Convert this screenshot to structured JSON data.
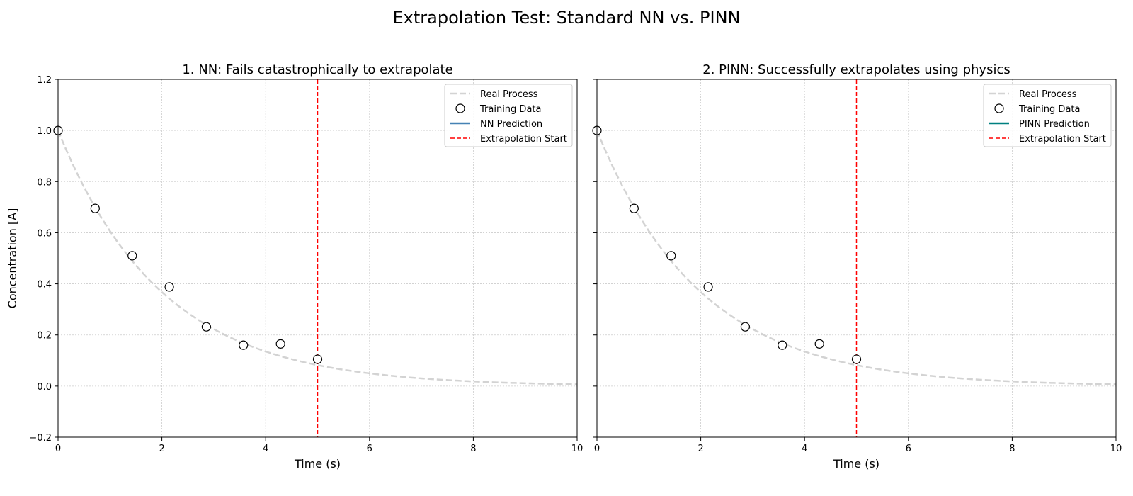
{
  "figure": {
    "suptitle": "Extrapolation Test: Standard NN vs. PINN"
  },
  "colors": {
    "real_process": "#d3d3d3",
    "training_edge": "#000000",
    "nn_prediction": "#4682b4",
    "pinn_prediction": "#008080",
    "extrapolation_line": "#ff0000",
    "grid": "#cccccc"
  },
  "chart_data": [
    {
      "type": "line",
      "title": "1. NN: Fails catastrophically to extrapolate",
      "xlabel": "Time (s)",
      "ylabel": "Concentration [A]",
      "xlim": [
        0,
        10
      ],
      "ylim": [
        -0.2,
        1.2
      ],
      "xticks": [
        "0",
        "2",
        "4",
        "6",
        "8",
        "10"
      ],
      "yticks": [
        "−0.2",
        "0.0",
        "0.2",
        "0.4",
        "0.6",
        "0.8",
        "1.0",
        "1.2"
      ],
      "show_ytick_labels": true,
      "grid": true,
      "legend_position": "top-right",
      "series": [
        {
          "name": "Real Process",
          "kind": "line",
          "style": "dashed",
          "function": "exp(-0.5*t)",
          "color_key": "real_process"
        },
        {
          "name": "Training Data",
          "kind": "scatter",
          "marker": "open-circle",
          "x": [
            0,
            0.714,
            1.429,
            2.143,
            2.857,
            3.571,
            4.286,
            5.0
          ],
          "y": [
            1.0,
            0.695,
            0.51,
            0.388,
            0.232,
            0.16,
            0.165,
            0.105
          ]
        },
        {
          "name": "NN Prediction",
          "kind": "line",
          "style": "solid",
          "color_key": "nn_prediction",
          "x": [
            0.0
          ],
          "y": [
            1.0
          ]
        },
        {
          "name": "Extrapolation Start",
          "kind": "vline",
          "style": "dashed",
          "x_value": 5,
          "color_key": "extrapolation_line"
        }
      ]
    },
    {
      "type": "line",
      "title": "2. PINN: Successfully extrapolates using physics",
      "xlabel": "Time (s)",
      "ylabel": "",
      "xlim": [
        0,
        10
      ],
      "ylim": [
        -0.2,
        1.2
      ],
      "xticks": [
        "0",
        "2",
        "4",
        "6",
        "8",
        "10"
      ],
      "yticks": [
        "−0.2",
        "0.0",
        "0.2",
        "0.4",
        "0.6",
        "0.8",
        "1.0",
        "1.2"
      ],
      "show_ytick_labels": false,
      "grid": true,
      "legend_position": "top-right",
      "series": [
        {
          "name": "Real Process",
          "kind": "line",
          "style": "dashed",
          "function": "exp(-0.5*t)",
          "color_key": "real_process"
        },
        {
          "name": "Training Data",
          "kind": "scatter",
          "marker": "open-circle",
          "x": [
            0,
            0.714,
            1.429,
            2.143,
            2.857,
            3.571,
            4.286,
            5.0
          ],
          "y": [
            1.0,
            0.695,
            0.51,
            0.388,
            0.232,
            0.16,
            0.165,
            0.105
          ]
        },
        {
          "name": "PINN Prediction",
          "kind": "line",
          "style": "solid",
          "color_key": "pinn_prediction",
          "x": [
            0.0
          ],
          "y": [
            1.0
          ]
        },
        {
          "name": "Extrapolation Start",
          "kind": "vline",
          "style": "dashed",
          "x_value": 5,
          "color_key": "extrapolation_line"
        }
      ]
    }
  ]
}
